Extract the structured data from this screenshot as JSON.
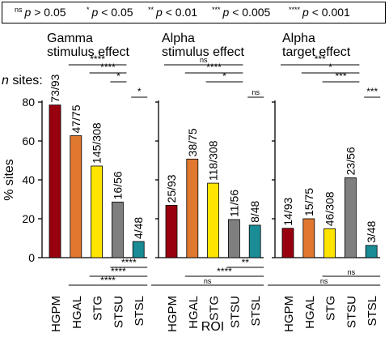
{
  "legend": [
    {
      "sup": "ns",
      "text": "p > 0.05"
    },
    {
      "sup": "*",
      "text": "p < 0.05"
    },
    {
      "sup": "**",
      "text": "p < 0.01"
    },
    {
      "sup": "***",
      "text": "p < 0.005"
    },
    {
      "sup": "****",
      "text": "p < 0.001"
    }
  ],
  "n_sites_label": "n sites:",
  "xlabel": "ROI",
  "ylabel": "% sites",
  "chart_data": [
    {
      "type": "bar",
      "title": [
        "Gamma",
        "stimulus effect"
      ],
      "categories": [
        "HGPM",
        "HGAL",
        "STG",
        "STSU",
        "STSL"
      ],
      "values": [
        78.5,
        62.7,
        47.1,
        28.6,
        8.3
      ],
      "bar_labels": [
        "73/93",
        "47/75",
        "145/308",
        "16/56",
        "4/48"
      ],
      "colors": [
        "#99000f",
        "#e07830",
        "#ffe400",
        "#807f7f",
        "#1a8c95"
      ],
      "ylim": [
        0,
        80
      ],
      "yticks": [
        0,
        20,
        40,
        60,
        80
      ],
      "comparisons_above": [
        {
          "from": 1,
          "to": 3,
          "label": "****"
        },
        {
          "from": 2,
          "to": 3,
          "label": "****"
        },
        {
          "from": 3,
          "to": 3,
          "label": "*"
        },
        {
          "from": 4,
          "to": 4,
          "label": "*"
        }
      ],
      "comparisons_below": [
        {
          "from": 3,
          "to": 4,
          "label": "****"
        },
        {
          "from": 2,
          "to": 4,
          "label": "****"
        },
        {
          "from": 1,
          "to": 4,
          "label": "****"
        }
      ]
    },
    {
      "type": "bar",
      "title": [
        "Alpha",
        "stimulus effect"
      ],
      "categories": [
        "HGPM",
        "HGAL",
        "STG",
        "STSU",
        "STSL"
      ],
      "values": [
        26.9,
        50.7,
        38.3,
        19.6,
        16.7
      ],
      "bar_labels": [
        "25/93",
        "38/75",
        "118/308",
        "11/56",
        "8/48"
      ],
      "colors": [
        "#99000f",
        "#e07830",
        "#ffe400",
        "#807f7f",
        "#1a8c95"
      ],
      "ylim": [
        0,
        80
      ],
      "comparisons_above": [
        {
          "from": 0,
          "to": 3,
          "label": "ns"
        },
        {
          "from": 1,
          "to": 3,
          "label": "****"
        },
        {
          "from": 2,
          "to": 3,
          "label": "*"
        },
        {
          "from": 4,
          "to": 4,
          "label": "ns"
        }
      ],
      "comparisons_below": [
        {
          "from": 3,
          "to": 4,
          "label": "**"
        },
        {
          "from": 1,
          "to": 4,
          "label": "****"
        },
        {
          "from": 0,
          "to": 4,
          "label": "ns"
        }
      ]
    },
    {
      "type": "bar",
      "title": [
        "Alpha",
        "target effect"
      ],
      "categories": [
        "HGPM",
        "HGAL",
        "STG",
        "STSU",
        "STSL"
      ],
      "values": [
        15.1,
        20.0,
        14.9,
        41.1,
        6.3
      ],
      "bar_labels": [
        "14/93",
        "15/75",
        "46/308",
        "23/56",
        "3/48"
      ],
      "colors": [
        "#99000f",
        "#e07830",
        "#ffe400",
        "#807f7f",
        "#1a8c95"
      ],
      "ylim": [
        0,
        80
      ],
      "comparisons_above": [
        {
          "from": 0,
          "to": 3,
          "label": "***"
        },
        {
          "from": 1,
          "to": 3,
          "label": "*"
        },
        {
          "from": 2,
          "to": 3,
          "label": "***"
        },
        {
          "from": 4,
          "to": 4,
          "label": "***"
        }
      ],
      "comparisons_below": [
        {
          "from": 2,
          "to": 4,
          "label": "ns"
        },
        {
          "from": 0,
          "to": 4,
          "label": "ns"
        }
      ]
    }
  ]
}
